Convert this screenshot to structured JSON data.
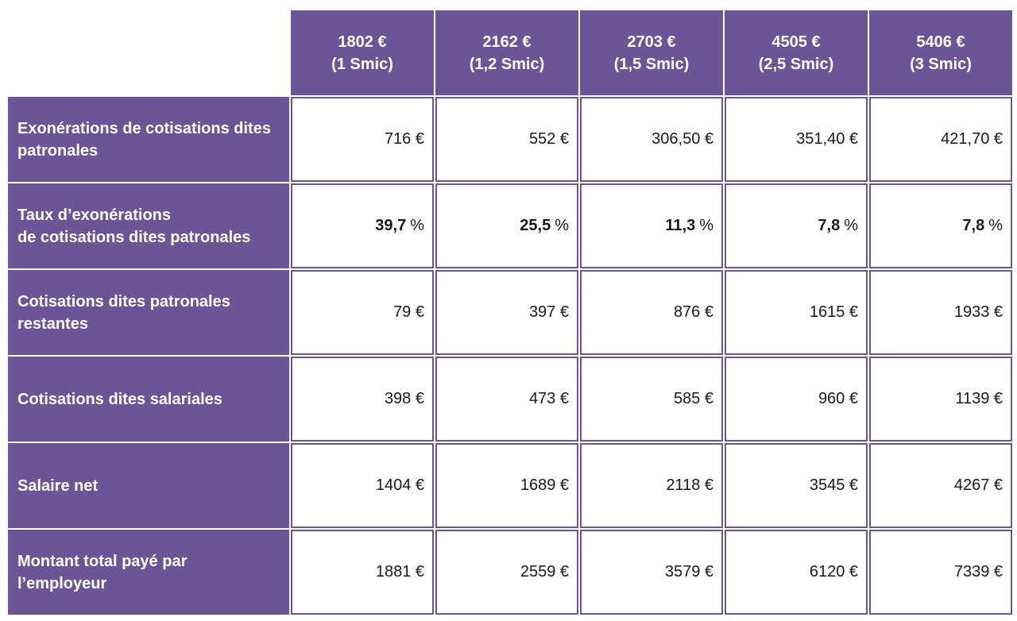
{
  "columns": [
    {
      "amount": "1802 €",
      "smic": "(1 Smic)"
    },
    {
      "amount": "2162 €",
      "smic": "(1,2 Smic)"
    },
    {
      "amount": "2703 €",
      "smic": "(1,5 Smic)"
    },
    {
      "amount": "4505 €",
      "smic": "(2,5 Smic)"
    },
    {
      "amount": "5406 €",
      "smic": "(3 Smic)"
    }
  ],
  "rows": [
    {
      "label": "Exonérations de cotisations dites\npatronales",
      "values": [
        "716 €",
        "552 €",
        "306,50 €",
        "351,40 €",
        "421,70 €"
      ]
    },
    {
      "label": "Taux d’exonérations\nde cotisations dites patronales",
      "values": [
        "39,7",
        "25,5",
        "11,3",
        "7,8",
        "7,8"
      ],
      "unit": "%"
    },
    {
      "label": "Cotisations dites patronales\nrestantes",
      "values": [
        "79 €",
        "397 €",
        "876 €",
        "1615 €",
        "1933 €"
      ]
    },
    {
      "label": "Cotisations dites salariales",
      "values": [
        "398 €",
        "473 €",
        "585 €",
        "960 €",
        "1139 €"
      ]
    },
    {
      "label": "Salaire net",
      "values": [
        "1404 €",
        "1689 €",
        "2118 €",
        "3545 €",
        "4267 €"
      ]
    },
    {
      "label": "Montant total payé par\nl’employeur",
      "values": [
        "1881 €",
        "2559 €",
        "3579 €",
        "6120 €",
        "7339 €"
      ]
    }
  ]
}
